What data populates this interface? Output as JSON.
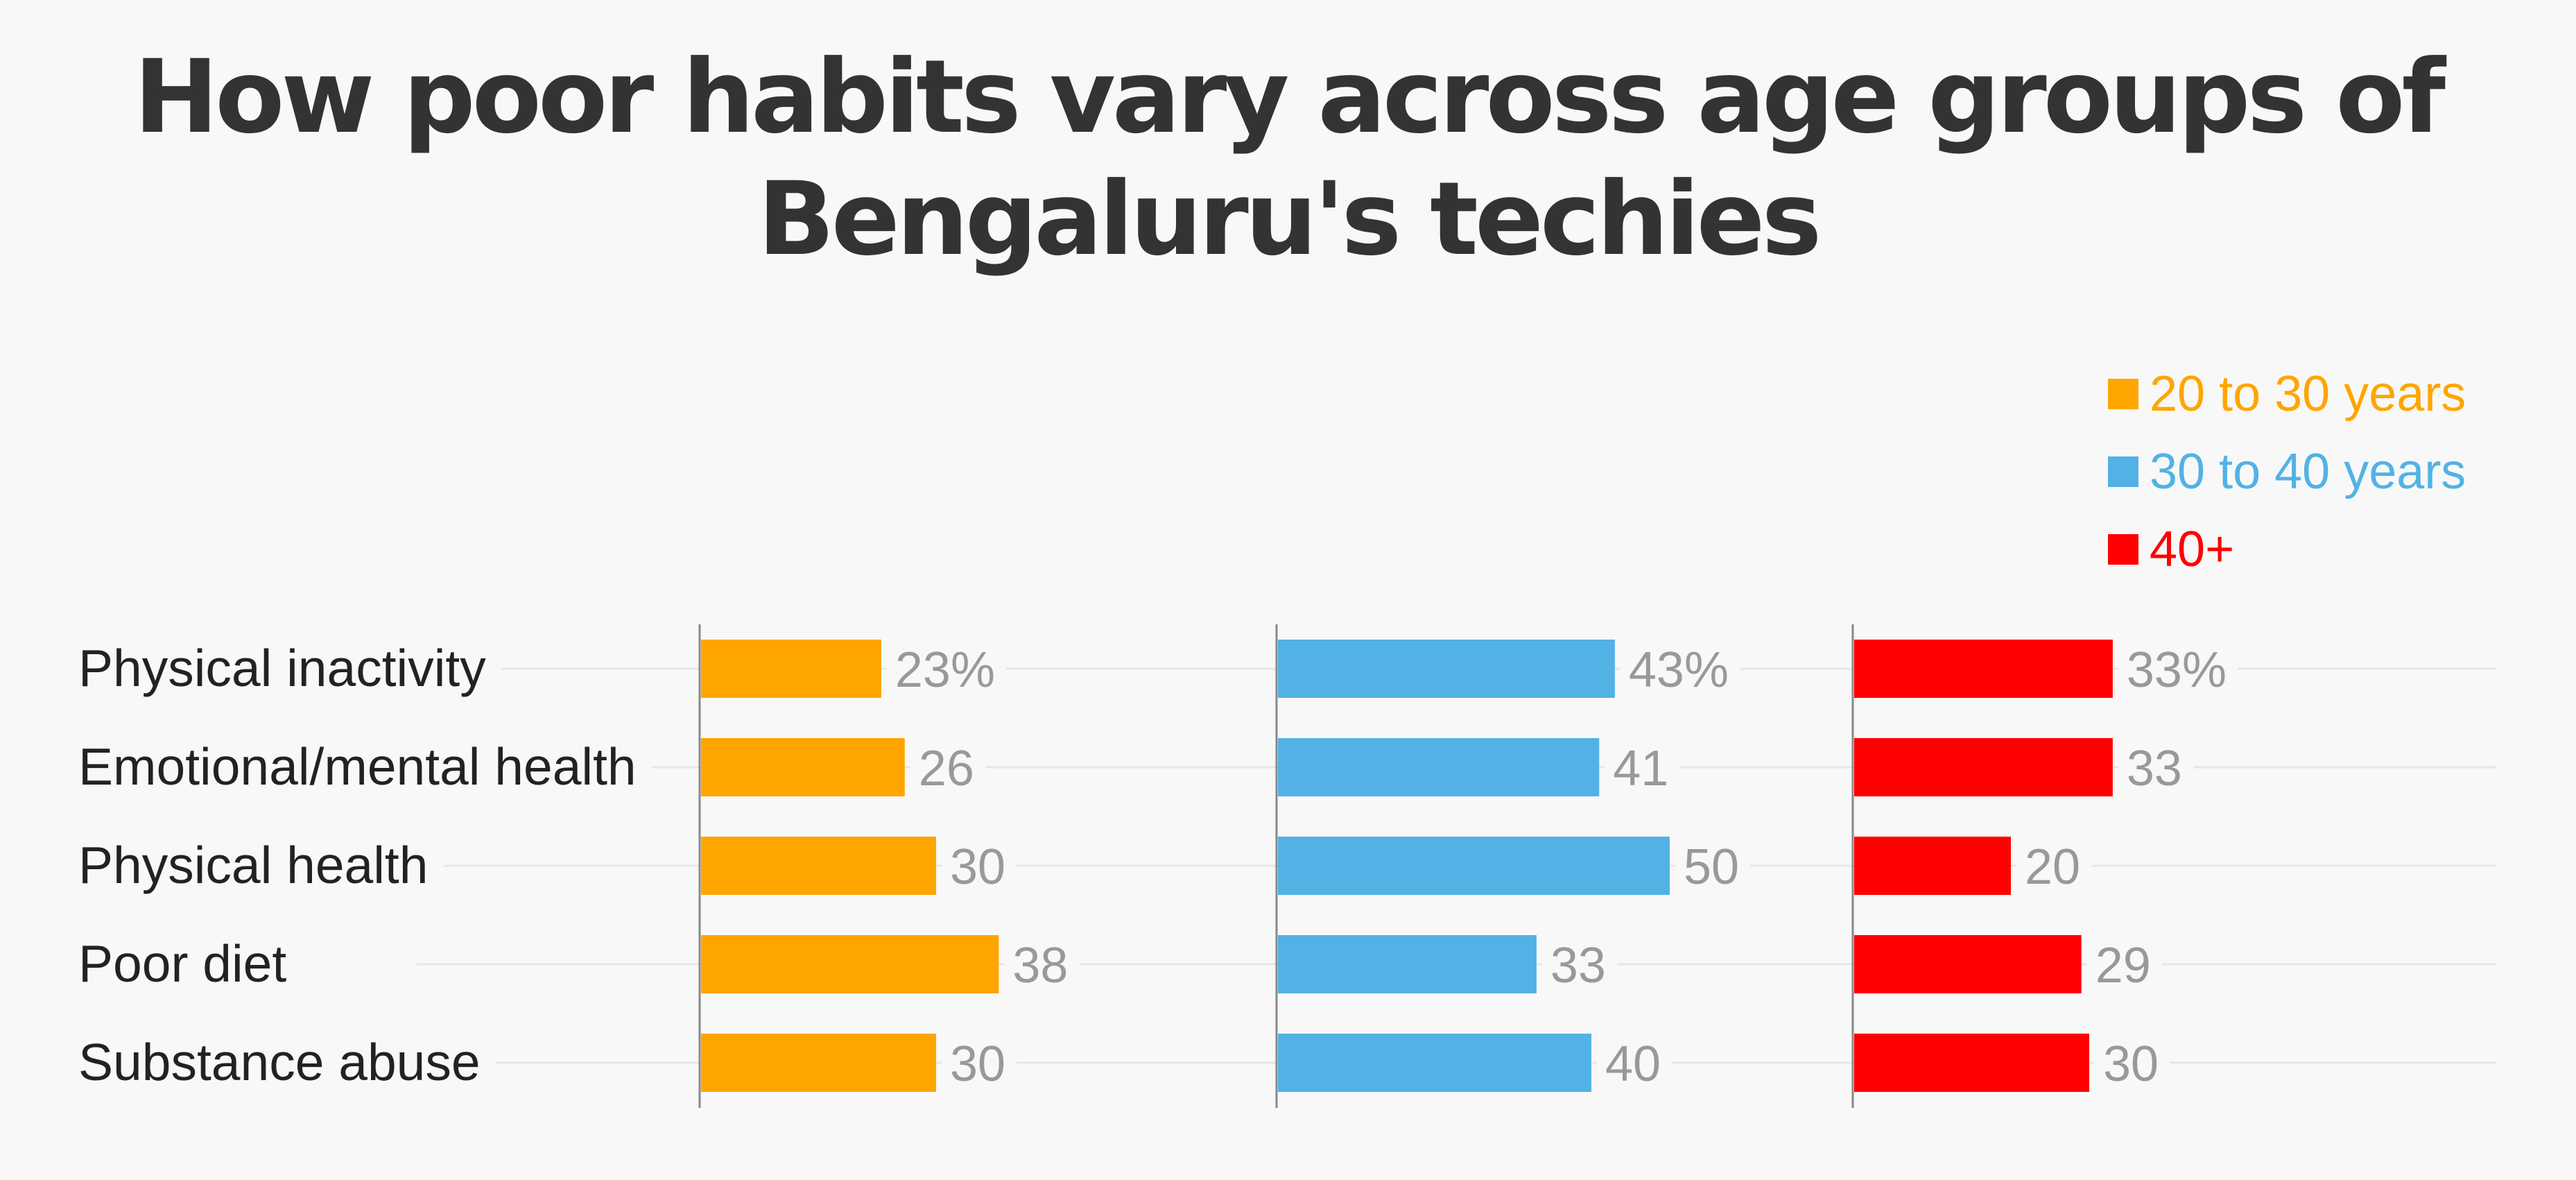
{
  "chart_data": {
    "type": "bar",
    "title": "How poor habits vary across age groups of Bengaluru's techies",
    "title_lines": [
      "How poor habits vary across age groups of",
      "Bengaluru's techies"
    ],
    "categories": [
      "Physical inactivity",
      "Emotional/mental health",
      "Physical health",
      "Poor diet",
      "Substance abuse"
    ],
    "series": [
      {
        "name": "20 to 30 years",
        "color": "#FFA500",
        "values": [
          23,
          26,
          30,
          38,
          30
        ]
      },
      {
        "name": "30 to 40 years",
        "color": "#52B2E5",
        "values": [
          43,
          41,
          50,
          33,
          40
        ]
      },
      {
        "name": "40+",
        "color": "#FF0000",
        "values": [
          33,
          33,
          20,
          29,
          30
        ]
      }
    ],
    "value_labels": [
      [
        "23%",
        "26",
        "30",
        "38",
        "30"
      ],
      [
        "43%",
        "41",
        "50",
        "33",
        "40"
      ],
      [
        "33%",
        "33",
        "20",
        "29",
        "30"
      ]
    ],
    "unit": "%",
    "orientation": "horizontal",
    "layout": "small-multiples",
    "xlim": [
      0,
      50
    ],
    "grid": true,
    "legend_position": "top-right",
    "label_color": "#999999",
    "category_color": "#222222",
    "axis_color": "#888888",
    "grid_color": "#e6e6e6",
    "title_color": "#333333"
  }
}
